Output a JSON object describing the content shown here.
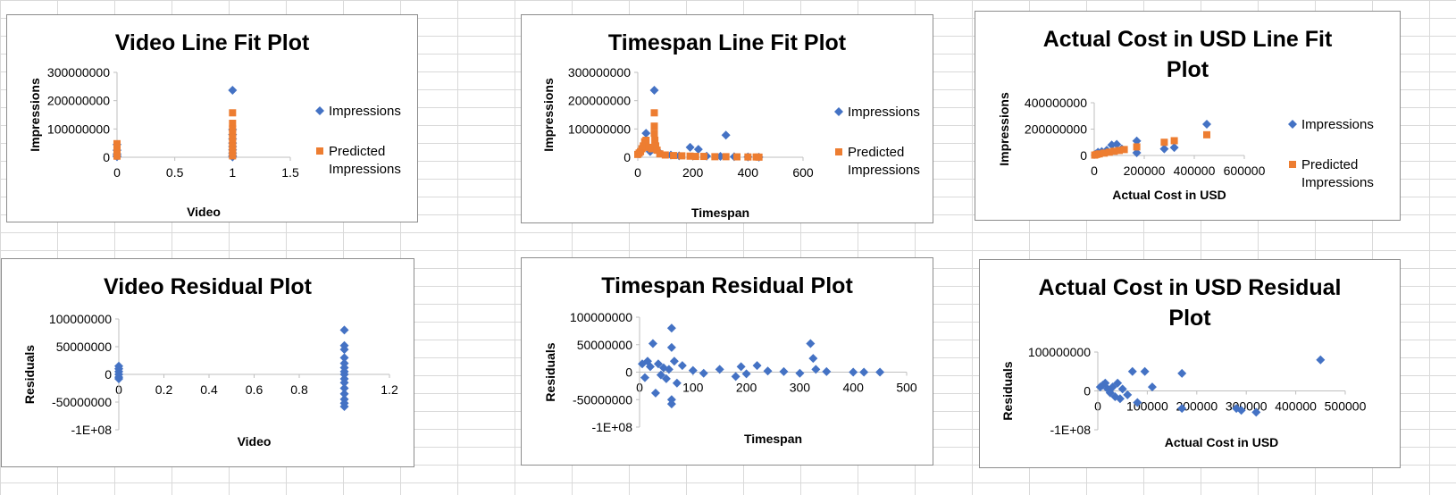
{
  "colors": {
    "impressions": "#4472C4",
    "predicted": "#ED7D31",
    "axis": "#bfbfbf",
    "grid": "#d9d9d9"
  },
  "legend": {
    "impressions": "Impressions",
    "predicted_line1": "Predicted",
    "predicted_line2": "Impressions"
  },
  "chart_data": [
    {
      "id": "video-fit",
      "type": "scatter",
      "title": "Video Line Fit  Plot",
      "xlabel": "Video",
      "ylabel": "Impressions",
      "xlim": [
        0,
        1.5
      ],
      "ylim": [
        0,
        300000000
      ],
      "xticks": [
        "0",
        "0.5",
        "1",
        "1.5"
      ],
      "yticks": [
        "0",
        "100000000",
        "200000000",
        "300000000"
      ],
      "legend": "right",
      "series": [
        {
          "name": "Impressions",
          "marker": "diamond",
          "points": [
            [
              0,
              45000000
            ],
            [
              0,
              25000000
            ],
            [
              0,
              12000000
            ],
            [
              0,
              6000000
            ],
            [
              0,
              2000000
            ],
            [
              1,
              237000000
            ],
            [
              1,
              98000000
            ],
            [
              1,
              80000000
            ],
            [
              1,
              65000000
            ],
            [
              1,
              50000000
            ],
            [
              1,
              38000000
            ],
            [
              1,
              26000000
            ],
            [
              1,
              15000000
            ],
            [
              1,
              6000000
            ],
            [
              1,
              1000000
            ]
          ]
        },
        {
          "name": "Predicted Impressions",
          "marker": "square",
          "points": [
            [
              0,
              48000000
            ],
            [
              0,
              40000000
            ],
            [
              0,
              30000000
            ],
            [
              0,
              12000000
            ],
            [
              0,
              4000000
            ],
            [
              1,
              157000000
            ],
            [
              1,
              120000000
            ],
            [
              1,
              100000000
            ],
            [
              1,
              85000000
            ],
            [
              1,
              70000000
            ],
            [
              1,
              55000000
            ],
            [
              1,
              40000000
            ],
            [
              1,
              28000000
            ],
            [
              1,
              16000000
            ],
            [
              1,
              5000000
            ]
          ]
        }
      ]
    },
    {
      "id": "timespan-fit",
      "type": "scatter",
      "title": "Timespan Line Fit  Plot",
      "xlabel": "Timespan",
      "ylabel": "Impressions",
      "xlim": [
        0,
        600
      ],
      "ylim": [
        0,
        300000000
      ],
      "xticks": [
        "0",
        "200",
        "400",
        "600"
      ],
      "yticks": [
        "0",
        "100000000",
        "200000000",
        "300000000"
      ],
      "legend": "right",
      "series": [
        {
          "name": "Impressions",
          "marker": "diamond",
          "points": [
            [
              60,
              237000000
            ],
            [
              30,
              85000000
            ],
            [
              320,
              78000000
            ],
            [
              190,
              35000000
            ],
            [
              220,
              28000000
            ],
            [
              10,
              25000000
            ],
            [
              45,
              20000000
            ],
            [
              80,
              15000000
            ],
            [
              120,
              8000000
            ],
            [
              150,
              5000000
            ],
            [
              250,
              4000000
            ],
            [
              300,
              3000000
            ],
            [
              350,
              2000000
            ],
            [
              400,
              1000000
            ],
            [
              440,
              500000
            ],
            [
              5,
              12000000
            ],
            [
              20,
              40000000
            ]
          ]
        },
        {
          "name": "Predicted Impressions",
          "marker": "square",
          "points": [
            [
              0,
              10000000
            ],
            [
              5,
              15000000
            ],
            [
              10,
              20000000
            ],
            [
              15,
              30000000
            ],
            [
              20,
              40000000
            ],
            [
              25,
              55000000
            ],
            [
              30,
              60000000
            ],
            [
              40,
              35000000
            ],
            [
              50,
              30000000
            ],
            [
              60,
              157000000
            ],
            [
              60,
              110000000
            ],
            [
              60,
              85000000
            ],
            [
              62,
              60000000
            ],
            [
              65,
              40000000
            ],
            [
              70,
              25000000
            ],
            [
              80,
              12000000
            ],
            [
              100,
              8000000
            ],
            [
              130,
              6000000
            ],
            [
              160,
              5000000
            ],
            [
              190,
              4000000
            ],
            [
              210,
              3000000
            ],
            [
              240,
              3000000
            ],
            [
              280,
              2000000
            ],
            [
              320,
              2000000
            ],
            [
              360,
              1500000
            ],
            [
              400,
              1000000
            ],
            [
              430,
              1000000
            ],
            [
              440,
              500000
            ]
          ]
        }
      ]
    },
    {
      "id": "cost-fit",
      "type": "scatter",
      "title": "Actual Cost in USD Line Fit Plot",
      "xlabel": "Actual Cost in USD",
      "ylabel": "Impressions",
      "xlim": [
        0,
        600000
      ],
      "ylim": [
        0,
        400000000
      ],
      "xticks": [
        "0",
        "200000",
        "400000",
        "600000"
      ],
      "yticks": [
        "0",
        "200000000",
        "400000000"
      ],
      "legend": "right",
      "series": [
        {
          "name": "Impressions",
          "marker": "diamond",
          "points": [
            [
              5000,
              10000000
            ],
            [
              15000,
              25000000
            ],
            [
              30000,
              30000000
            ],
            [
              50000,
              40000000
            ],
            [
              70000,
              80000000
            ],
            [
              90000,
              85000000
            ],
            [
              110000,
              50000000
            ],
            [
              170000,
              110000000
            ],
            [
              170000,
              20000000
            ],
            [
              280000,
              50000000
            ],
            [
              320000,
              60000000
            ],
            [
              450000,
              237000000
            ]
          ]
        },
        {
          "name": "Predicted Impressions",
          "marker": "square",
          "points": [
            [
              2000,
              3000000
            ],
            [
              10000,
              8000000
            ],
            [
              20000,
              12000000
            ],
            [
              40000,
              18000000
            ],
            [
              60000,
              25000000
            ],
            [
              80000,
              32000000
            ],
            [
              100000,
              38000000
            ],
            [
              120000,
              45000000
            ],
            [
              170000,
              65000000
            ],
            [
              280000,
              100000000
            ],
            [
              320000,
              112000000
            ],
            [
              450000,
              157000000
            ]
          ]
        }
      ]
    },
    {
      "id": "video-residual",
      "type": "scatter",
      "title": "Video  Residual Plot",
      "xlabel": "Video",
      "ylabel": "Residuals",
      "xlim": [
        0,
        1.2
      ],
      "ylim": [
        -100000000,
        100000000
      ],
      "xticks": [
        "0",
        "0.2",
        "0.4",
        "0.6",
        "0.8",
        "1",
        "1.2"
      ],
      "yticks": [
        "-1E+08",
        "-50000000",
        "0",
        "50000000",
        "100000000"
      ],
      "series": [
        {
          "name": "Residuals",
          "marker": "diamond",
          "points": [
            [
              0,
              15000000
            ],
            [
              0,
              10000000
            ],
            [
              0,
              5000000
            ],
            [
              0,
              0
            ],
            [
              0,
              -5000000
            ],
            [
              0,
              -8000000
            ],
            [
              1,
              80000000
            ],
            [
              1,
              52000000
            ],
            [
              1,
              45000000
            ],
            [
              1,
              30000000
            ],
            [
              1,
              20000000
            ],
            [
              1,
              12000000
            ],
            [
              1,
              5000000
            ],
            [
              1,
              0
            ],
            [
              1,
              -8000000
            ],
            [
              1,
              -15000000
            ],
            [
              1,
              -25000000
            ],
            [
              1,
              -35000000
            ],
            [
              1,
              -45000000
            ],
            [
              1,
              -52000000
            ],
            [
              1,
              -58000000
            ]
          ]
        }
      ]
    },
    {
      "id": "timespan-residual",
      "type": "scatter",
      "title": "Timespan  Residual Plot",
      "xlabel": "Timespan",
      "ylabel": "Residuals",
      "xlim": [
        0,
        500
      ],
      "ylim": [
        -100000000,
        100000000
      ],
      "xticks": [
        "0",
        "100",
        "200",
        "300",
        "400",
        "500"
      ],
      "yticks": [
        "-1E+08",
        "-50000000",
        "0",
        "50000000",
        "100000000"
      ],
      "series": [
        {
          "name": "Residuals",
          "marker": "diamond",
          "points": [
            [
              5,
              15000000
            ],
            [
              10,
              -10000000
            ],
            [
              15,
              20000000
            ],
            [
              20,
              10000000
            ],
            [
              25,
              52000000
            ],
            [
              30,
              -38000000
            ],
            [
              35,
              15000000
            ],
            [
              40,
              -5000000
            ],
            [
              45,
              8000000
            ],
            [
              50,
              -12000000
            ],
            [
              55,
              5000000
            ],
            [
              60,
              80000000
            ],
            [
              60,
              45000000
            ],
            [
              60,
              -50000000
            ],
            [
              60,
              -58000000
            ],
            [
              65,
              20000000
            ],
            [
              70,
              -20000000
            ],
            [
              80,
              12000000
            ],
            [
              100,
              3000000
            ],
            [
              120,
              -2000000
            ],
            [
              150,
              5000000
            ],
            [
              180,
              -8000000
            ],
            [
              190,
              10000000
            ],
            [
              200,
              -3000000
            ],
            [
              220,
              12000000
            ],
            [
              240,
              2000000
            ],
            [
              270,
              1000000
            ],
            [
              300,
              -2000000
            ],
            [
              320,
              52000000
            ],
            [
              325,
              25000000
            ],
            [
              330,
              5000000
            ],
            [
              350,
              1000000
            ],
            [
              400,
              0
            ],
            [
              420,
              0
            ],
            [
              450,
              0
            ]
          ]
        }
      ]
    },
    {
      "id": "cost-residual",
      "type": "scatter",
      "title": "Actual Cost in USD  Residual Plot",
      "xlabel": "Actual Cost in USD",
      "ylabel": "Residuals",
      "xlim": [
        0,
        500000
      ],
      "ylim": [
        -100000000,
        100000000
      ],
      "xticks": [
        "0",
        "100000",
        "200000",
        "300000",
        "400000",
        "500000"
      ],
      "yticks": [
        "-1E+08",
        "0",
        "100000000"
      ],
      "series": [
        {
          "name": "Residuals",
          "marker": "diamond",
          "points": [
            [
              5000,
              10000000
            ],
            [
              10000,
              15000000
            ],
            [
              15000,
              20000000
            ],
            [
              20000,
              5000000
            ],
            [
              25000,
              -5000000
            ],
            [
              30000,
              10000000
            ],
            [
              35000,
              -15000000
            ],
            [
              40000,
              20000000
            ],
            [
              45000,
              -20000000
            ],
            [
              50000,
              5000000
            ],
            [
              60000,
              -10000000
            ],
            [
              70000,
              50000000
            ],
            [
              80000,
              -30000000
            ],
            [
              95000,
              50000000
            ],
            [
              110000,
              10000000
            ],
            [
              170000,
              45000000
            ],
            [
              170000,
              -45000000
            ],
            [
              280000,
              -45000000
            ],
            [
              290000,
              -50000000
            ],
            [
              320000,
              -55000000
            ],
            [
              450000,
              80000000
            ]
          ]
        }
      ]
    }
  ]
}
